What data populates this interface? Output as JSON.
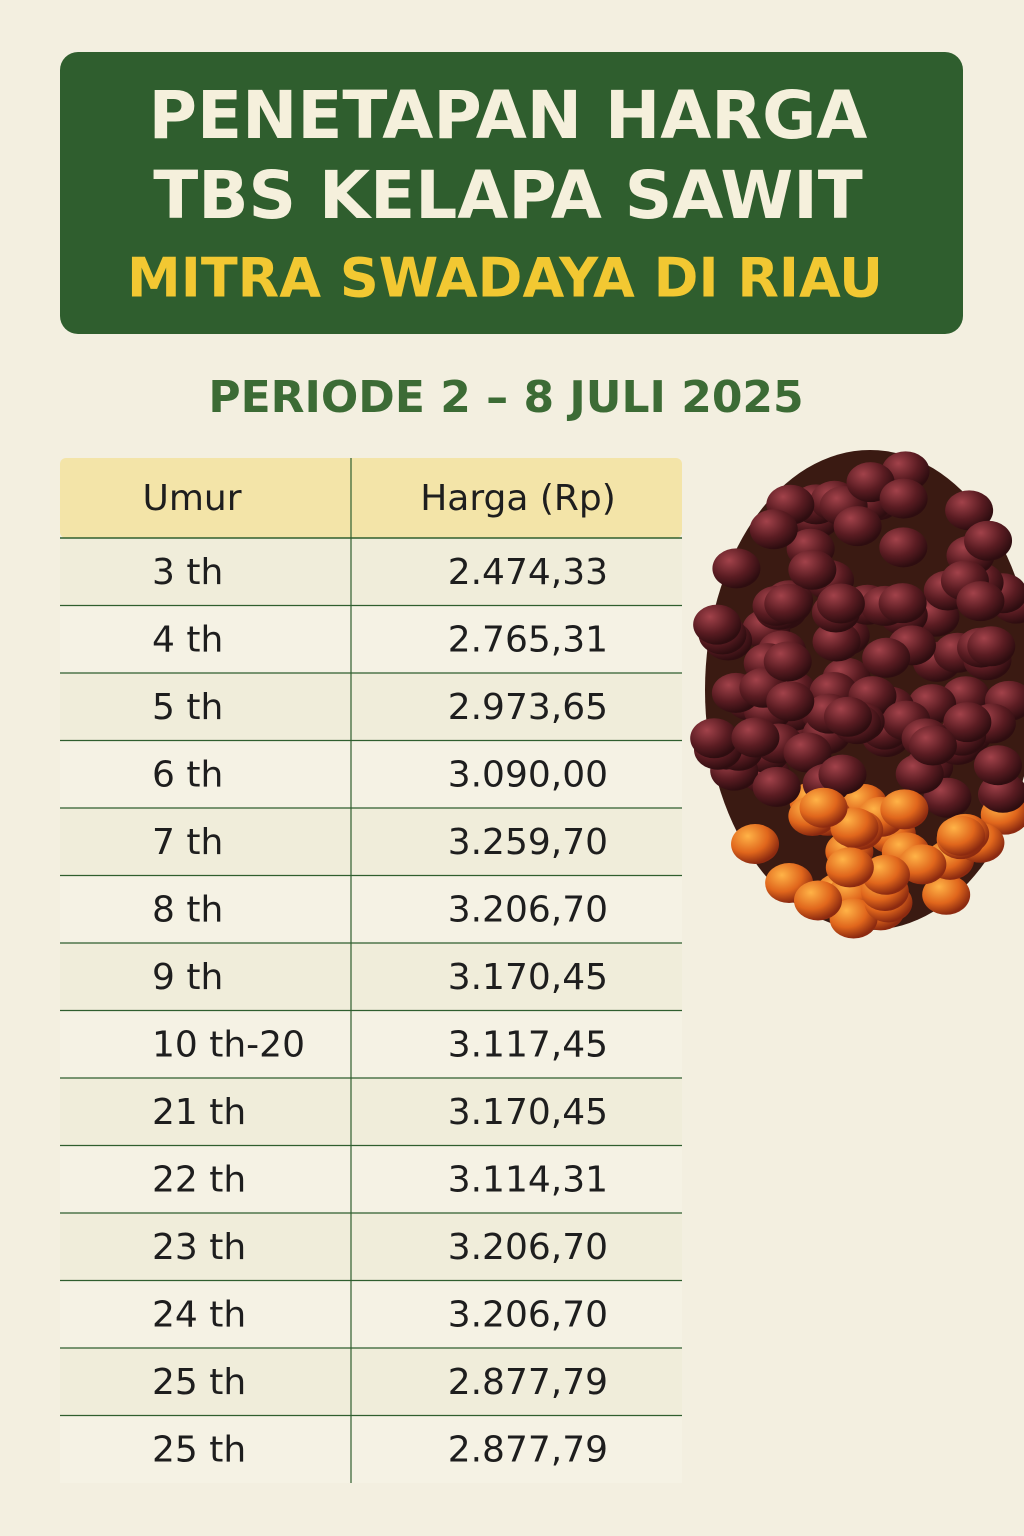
{
  "header": {
    "title_lines": [
      "PENETAPAN HARGA",
      "TBS KELAPA SAWIT"
    ],
    "subtitle": "MITRA SWADAYA DI RIAU"
  },
  "period": "PERIODE 2 – 8 JULI 2025",
  "table": {
    "columns": [
      "Umur",
      "Harga (Rp)"
    ],
    "rows": [
      [
        "3 th",
        "2.474,33"
      ],
      [
        "4 th",
        "2.765,31"
      ],
      [
        "5 th",
        "2.973,65"
      ],
      [
        "6 th",
        "3.090,00"
      ],
      [
        "7 th",
        "3.259,70"
      ],
      [
        "8 th",
        "3.206,70"
      ],
      [
        "9 th",
        "3.170,45"
      ],
      [
        "10 th-20",
        "3.117,45"
      ],
      [
        "21 th",
        "3.170,45"
      ],
      [
        "22 th",
        "3.114,31"
      ],
      [
        "23 th",
        "3.206,70"
      ],
      [
        "24 th",
        "3.206,70"
      ],
      [
        "25 th",
        "2.877,79"
      ],
      [
        "25 th",
        "2.877,79"
      ]
    ]
  }
}
